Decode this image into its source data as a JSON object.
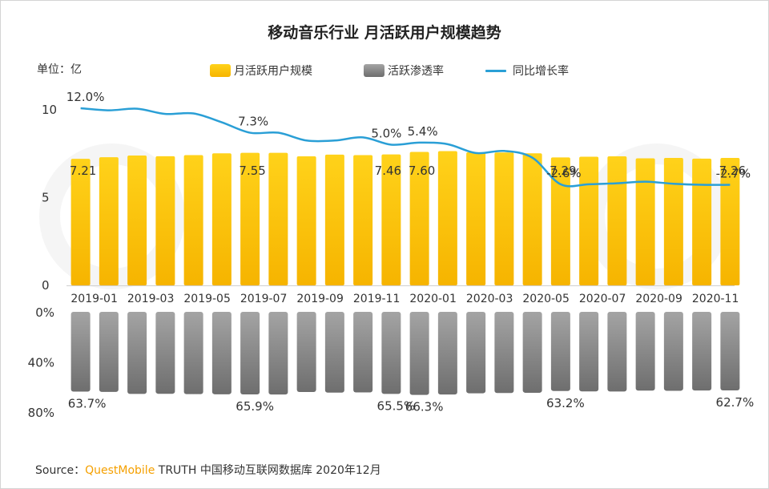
{
  "title": "移动音乐行业 月活跃用户规模趋势",
  "unit_label": "单位：亿",
  "legend": {
    "mau": "月活跃用户规模",
    "penetration": "活跃渗透率",
    "growth": "同比增长率"
  },
  "source": {
    "prefix": "Source：",
    "brand": "QuestMobile",
    "suffix": "TRUTH 中国移动互联网数据库 2020年12月"
  },
  "colors": {
    "bar_top": "#ffd21a",
    "bar_bottom": "#f6b400",
    "gray_top": "#a4a4a4",
    "gray_bottom": "#6e6e6e",
    "line": "#2a9fd6"
  },
  "chart_data": {
    "type": "bar",
    "categories": [
      "2019-01",
      "2019-02",
      "2019-03",
      "2019-04",
      "2019-05",
      "2019-06",
      "2019-07",
      "2019-08",
      "2019-09",
      "2019-10",
      "2019-11",
      "2019-12",
      "2020-01",
      "2020-02",
      "2020-03",
      "2020-04",
      "2020-05",
      "2020-06",
      "2020-07",
      "2020-08",
      "2020-09",
      "2020-10",
      "2020-11",
      "2020-12"
    ],
    "x_tick_labels": [
      "2019-01",
      "2019-03",
      "2019-05",
      "2019-07",
      "2019-09",
      "2019-11",
      "2020-01",
      "2020-03",
      "2020-05",
      "2020-07",
      "2020-09",
      "2020-11"
    ],
    "series": [
      {
        "name": "月活跃用户规模",
        "type": "bar",
        "values": [
          7.21,
          7.3,
          7.4,
          7.36,
          7.42,
          7.52,
          7.55,
          7.55,
          7.35,
          7.45,
          7.42,
          7.46,
          7.6,
          7.65,
          7.58,
          7.57,
          7.52,
          7.29,
          7.33,
          7.35,
          7.24,
          7.26,
          7.22,
          7.26
        ],
        "ylim": [
          0,
          10
        ],
        "yticks": [
          "0",
          "5",
          "10"
        ]
      },
      {
        "name": "同比增长率",
        "type": "line",
        "values": [
          12.0,
          11.6,
          11.9,
          10.9,
          11.0,
          9.3,
          7.3,
          7.3,
          5.8,
          5.8,
          6.4,
          5.0,
          5.4,
          5.1,
          3.4,
          3.8,
          2.5,
          -2.6,
          -2.6,
          -2.4,
          -2.1,
          -2.5,
          -2.7,
          -2.7
        ],
        "unit": "%"
      },
      {
        "name": "活跃渗透率",
        "type": "bar",
        "direction": "down",
        "values": [
          63.7,
          63.9,
          65.5,
          65.4,
          65.7,
          65.8,
          65.9,
          66.0,
          64.0,
          64.5,
          64.3,
          65.5,
          66.3,
          66.0,
          65.0,
          64.8,
          64.6,
          63.2,
          63.5,
          63.6,
          62.9,
          63.0,
          62.8,
          62.7
        ],
        "ylim": [
          0,
          80
        ],
        "yticks": [
          "0%",
          "40%",
          "80%"
        ]
      }
    ],
    "data_labels": {
      "mau": [
        {
          "i": 0,
          "text": "7.21"
        },
        {
          "i": 6,
          "text": "7.55"
        },
        {
          "i": 11,
          "text": "7.46"
        },
        {
          "i": 12,
          "text": "7.60"
        },
        {
          "i": 17,
          "text": "7.29"
        },
        {
          "i": 23,
          "text": "7.26"
        }
      ],
      "growth": [
        {
          "i": 0,
          "text": "12.0%"
        },
        {
          "i": 6,
          "text": "7.3%"
        },
        {
          "i": 11,
          "text": "5.0%"
        },
        {
          "i": 12,
          "text": "5.4%"
        },
        {
          "i": 17,
          "text": "-2.6%"
        },
        {
          "i": 23,
          "text": "-2.7%"
        }
      ],
      "penetration": [
        {
          "i": 0,
          "text": "63.7%"
        },
        {
          "i": 6,
          "text": "65.9%"
        },
        {
          "i": 11,
          "text": "65.5%"
        },
        {
          "i": 12,
          "text": "66.3%"
        },
        {
          "i": 17,
          "text": "63.2%"
        },
        {
          "i": 23,
          "text": "62.7%"
        }
      ]
    }
  }
}
